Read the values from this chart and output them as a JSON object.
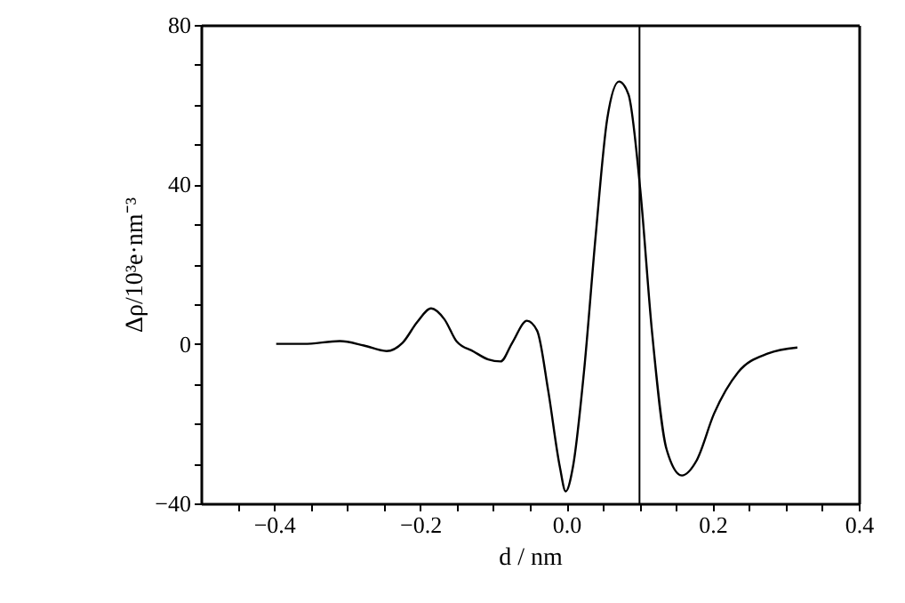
{
  "chart_data": {
    "type": "line",
    "xlabel": "d / nm",
    "ylabel": "Δρ/10³e·nm⁻³",
    "xlim": [
      -0.5,
      0.4
    ],
    "ylim": [
      -40,
      80
    ],
    "xticks": [
      {
        "value": -0.45,
        "label": null
      },
      {
        "value": -0.4,
        "label": "−0.4"
      },
      {
        "value": -0.35,
        "label": null
      },
      {
        "value": -0.3,
        "label": null
      },
      {
        "value": -0.25,
        "label": null
      },
      {
        "value": -0.2,
        "label": "−0.2"
      },
      {
        "value": -0.15,
        "label": null
      },
      {
        "value": -0.1,
        "label": null
      },
      {
        "value": -0.05,
        "label": null
      },
      {
        "value": 0,
        "label": "0.0"
      },
      {
        "value": 0.05,
        "label": null
      },
      {
        "value": 0.1,
        "label": null
      },
      {
        "value": 0.15,
        "label": null
      },
      {
        "value": 0.2,
        "label": "0.2"
      },
      {
        "value": 0.25,
        "label": null
      },
      {
        "value": 0.3,
        "label": null
      },
      {
        "value": 0.35,
        "label": null
      },
      {
        "value": 0.4,
        "label": "0.4"
      }
    ],
    "yticks": [
      {
        "value": -40,
        "label": "−40"
      },
      {
        "value": -30,
        "label": null
      },
      {
        "value": -20,
        "label": null
      },
      {
        "value": -10,
        "label": null
      },
      0,
      {
        "value": 10,
        "label": null
      },
      {
        "value": 20,
        "label": null
      },
      {
        "value": 30,
        "label": null
      },
      40,
      {
        "value": 50,
        "label": null
      },
      {
        "value": 60,
        "label": null
      },
      {
        "value": 70,
        "label": null
      },
      80
    ],
    "grid": false,
    "ref_lines": [
      {
        "axis": "x",
        "value": 0.1,
        "color": "#000000"
      }
    ],
    "series": [
      {
        "color": "#000000",
        "x": [
          -0.397,
          -0.359,
          -0.31,
          -0.277,
          -0.246,
          -0.224,
          -0.204,
          -0.185,
          -0.167,
          -0.15,
          -0.127,
          -0.107,
          -0.09,
          -0.074,
          -0.054,
          -0.04,
          -0.025,
          -0.009,
          -0.001,
          0.009,
          0.024,
          0.04,
          0.056,
          0.072,
          0.085,
          0.101,
          0.117,
          0.137,
          0.158,
          0.178,
          0.202,
          0.235,
          0.276,
          0.316
        ],
        "values": [
          0,
          0,
          0.7,
          -0.4,
          -1.8,
          0.3,
          5.5,
          8.9,
          6.2,
          0.6,
          -1.9,
          -3.9,
          -4.4,
          0.3,
          5.8,
          3.3,
          -11.6,
          -30.8,
          -37,
          -30.8,
          -7.1,
          27,
          56.6,
          65.8,
          62.5,
          38.8,
          3.3,
          -26.4,
          -33,
          -29.3,
          -17.5,
          -7.1,
          -2.4,
          -0.9
        ]
      }
    ]
  }
}
